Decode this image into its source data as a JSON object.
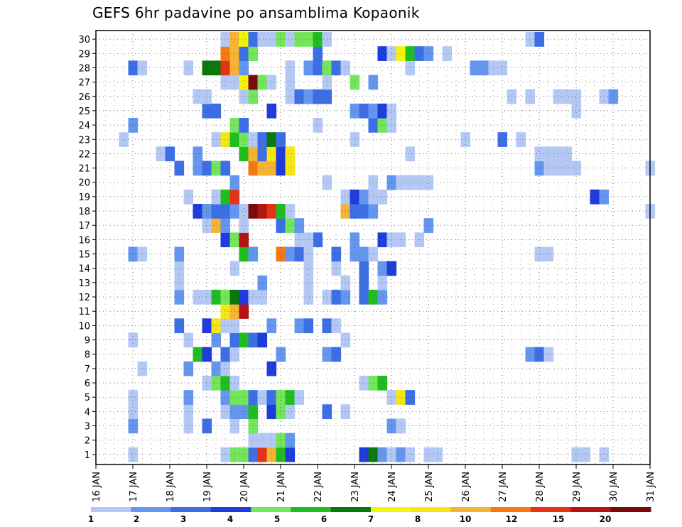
{
  "chart_data": {
    "type": "heatmap",
    "title": "GEFS 6hr padavine po ansamblima Kopaonik",
    "x_tick_labels": [
      "16 JAN",
      "17 JAN",
      "18 JAN",
      "19 JAN",
      "20 JAN",
      "21 JAN",
      "22 JAN",
      "23 JAN",
      "24 JAN",
      "25 JAN",
      "26 JAN",
      "27 JAN",
      "28 JAN",
      "29 JAN",
      "30 JAN",
      "31 JAN"
    ],
    "x_range_days": [
      16,
      31
    ],
    "y_tick_labels": [
      "1",
      "2",
      "3",
      "4",
      "5",
      "6",
      "7",
      "8",
      "9",
      "10",
      "11",
      "12",
      "13",
      "14",
      "15",
      "16",
      "17",
      "18",
      "19",
      "20",
      "21",
      "22",
      "23",
      "24",
      "25",
      "26",
      "27",
      "28",
      "29",
      "30"
    ],
    "y_range_members": [
      1,
      30
    ],
    "grid": true,
    "colorbar": {
      "placement": "bottom",
      "labels": [
        "1",
        "2",
        "3",
        "4",
        "5",
        "6",
        "7",
        "8",
        "10",
        "12",
        "15",
        "20"
      ],
      "colors": [
        "#b4c8f5",
        "#6496f0",
        "#3c6ee6",
        "#1e3cdc",
        "#73e65a",
        "#1ebe1e",
        "#0a780a",
        "#f5f50a",
        "#f5e614",
        "#f5b432",
        "#f57814",
        "#e63214",
        "#b41414",
        "#780a0a"
      ]
    },
    "cells": [
      [
        1,
        "19.75",
        5
      ],
      [
        1,
        "20.00",
        5
      ],
      [
        1,
        "20.25",
        3
      ],
      [
        1,
        "20.50",
        12
      ],
      [
        1,
        "20.75",
        10
      ],
      [
        1,
        "21.00",
        6
      ],
      [
        1,
        "21.25",
        4
      ],
      [
        1,
        "17.00",
        1
      ],
      [
        1,
        "19.50",
        1
      ],
      [
        1,
        "23.25",
        4
      ],
      [
        1,
        "23.50",
        7
      ],
      [
        1,
        "23.75",
        2
      ],
      [
        1,
        "24.00",
        1
      ],
      [
        1,
        "24.25",
        2
      ],
      [
        1,
        "24.50",
        1
      ],
      [
        1,
        "25.00",
        1
      ],
      [
        1,
        "25.25",
        1
      ],
      [
        1,
        "29.00",
        1
      ],
      [
        1,
        "29.25",
        1
      ],
      [
        1,
        "29.75",
        1
      ],
      [
        2,
        "20.25",
        1
      ],
      [
        2,
        "20.50",
        1
      ],
      [
        2,
        "20.75",
        1
      ],
      [
        2,
        "21.00",
        5
      ],
      [
        2,
        "21.25",
        2
      ],
      [
        3,
        "17.00",
        2
      ],
      [
        3,
        "18.50",
        1
      ],
      [
        3,
        "19.00",
        3
      ],
      [
        3,
        "19.75",
        1
      ],
      [
        3,
        "20.25",
        5
      ],
      [
        3,
        "24.00",
        2
      ],
      [
        3,
        "24.25",
        1
      ],
      [
        4,
        "19.50",
        1
      ],
      [
        4,
        "19.75",
        2
      ],
      [
        4,
        "20.00",
        2
      ],
      [
        4,
        "20.25",
        6
      ],
      [
        4,
        "20.75",
        4
      ],
      [
        4,
        "21.00",
        5
      ],
      [
        4,
        "21.25",
        1
      ],
      [
        4,
        "22.25",
        3
      ],
      [
        4,
        "22.75",
        1
      ],
      [
        4,
        "17.00",
        1
      ],
      [
        4,
        "18.50",
        1
      ],
      [
        5,
        "17.00",
        1
      ],
      [
        5,
        "18.50",
        2
      ],
      [
        5,
        "19.50",
        2
      ],
      [
        5,
        "19.75",
        5
      ],
      [
        5,
        "20.00",
        5
      ],
      [
        5,
        "20.25",
        3
      ],
      [
        5,
        "20.50",
        1
      ],
      [
        5,
        "20.75",
        3
      ],
      [
        5,
        "21.00",
        5
      ],
      [
        5,
        "21.25",
        6
      ],
      [
        5,
        "21.50",
        1
      ],
      [
        5,
        "24.00",
        1
      ],
      [
        5,
        "24.25",
        9
      ],
      [
        5,
        "24.50",
        3
      ],
      [
        6,
        "19.00",
        1
      ],
      [
        6,
        "19.25",
        5
      ],
      [
        6,
        "19.50",
        6
      ],
      [
        6,
        "19.75",
        1
      ],
      [
        6,
        "23.25",
        1
      ],
      [
        6,
        "23.50",
        5
      ],
      [
        6,
        "23.75",
        6
      ],
      [
        7,
        "17.25",
        1
      ],
      [
        7,
        "18.50",
        2
      ],
      [
        7,
        "19.25",
        2
      ],
      [
        7,
        "19.50",
        1
      ],
      [
        7,
        "20.75",
        4
      ],
      [
        8,
        "18.75",
        6
      ],
      [
        8,
        "19.00",
        4
      ],
      [
        8,
        "19.50",
        3
      ],
      [
        8,
        "19.75",
        1
      ],
      [
        8,
        "21.00",
        2
      ],
      [
        8,
        "22.25",
        2
      ],
      [
        8,
        "22.50",
        3
      ],
      [
        8,
        "27.75",
        2
      ],
      [
        8,
        "28.00",
        3
      ],
      [
        8,
        "28.25",
        1
      ],
      [
        9,
        "17.00",
        1
      ],
      [
        9,
        "18.50",
        1
      ],
      [
        9,
        "19.25",
        2
      ],
      [
        9,
        "19.75",
        3
      ],
      [
        9,
        "20.00",
        6
      ],
      [
        9,
        "20.25",
        3
      ],
      [
        9,
        "20.50",
        4
      ],
      [
        9,
        "22.75",
        1
      ],
      [
        10,
        "18.25",
        3
      ],
      [
        10,
        "19.00",
        4
      ],
      [
        10,
        "19.25",
        9
      ],
      [
        10,
        "19.50",
        1
      ],
      [
        10,
        "19.75",
        1
      ],
      [
        10,
        "20.75",
        2
      ],
      [
        10,
        "21.50",
        2
      ],
      [
        10,
        "21.75",
        3
      ],
      [
        10,
        "22.25",
        3
      ],
      [
        10,
        "22.50",
        1
      ],
      [
        11,
        "19.50",
        9
      ],
      [
        11,
        "19.75",
        10
      ],
      [
        11,
        "20.00",
        13
      ],
      [
        12,
        "18.25",
        2
      ],
      [
        12,
        "18.75",
        1
      ],
      [
        12,
        "19.00",
        1
      ],
      [
        12,
        "19.25",
        6
      ],
      [
        12,
        "19.50",
        5
      ],
      [
        12,
        "19.75",
        7
      ],
      [
        12,
        "20.00",
        4
      ],
      [
        12,
        "20.25",
        1
      ],
      [
        12,
        "20.50",
        1
      ],
      [
        12,
        "21.75",
        1
      ],
      [
        12,
        "22.25",
        1
      ],
      [
        12,
        "22.50",
        3
      ],
      [
        12,
        "22.75",
        2
      ],
      [
        12,
        "23.25",
        3
      ],
      [
        12,
        "23.50",
        6
      ],
      [
        12,
        "23.75",
        2
      ],
      [
        13,
        "18.25",
        1
      ],
      [
        13,
        "20.50",
        2
      ],
      [
        13,
        "22.75",
        1
      ],
      [
        13,
        "23.25",
        3
      ],
      [
        13,
        "23.75",
        1
      ],
      [
        13,
        "21.75",
        1
      ],
      [
        14,
        "18.25",
        1
      ],
      [
        14,
        "19.75",
        1
      ],
      [
        14,
        "22.50",
        1
      ],
      [
        14,
        "23.25",
        3
      ],
      [
        14,
        "23.75",
        2
      ],
      [
        14,
        "24.00",
        4
      ],
      [
        14,
        "21.75",
        1
      ],
      [
        15,
        "17.00",
        2
      ],
      [
        15,
        "17.25",
        1
      ],
      [
        15,
        "18.25",
        2
      ],
      [
        15,
        "20.00",
        6
      ],
      [
        15,
        "20.25",
        2
      ],
      [
        15,
        "21.00",
        11
      ],
      [
        15,
        "21.25",
        2
      ],
      [
        15,
        "21.50",
        3
      ],
      [
        15,
        "21.75",
        1
      ],
      [
        15,
        "22.50",
        3
      ],
      [
        15,
        "23.00",
        2
      ],
      [
        15,
        "23.25",
        2
      ],
      [
        15,
        "23.50",
        1
      ],
      [
        15,
        "28.00",
        1
      ],
      [
        15,
        "28.25",
        1
      ],
      [
        16,
        "19.50",
        4
      ],
      [
        16,
        "19.75",
        5
      ],
      [
        16,
        "20.00",
        13
      ],
      [
        16,
        "22.00",
        3
      ],
      [
        16,
        "23.00",
        2
      ],
      [
        16,
        "23.75",
        4
      ],
      [
        16,
        "24.00",
        1
      ],
      [
        16,
        "24.25",
        1
      ],
      [
        16,
        "24.75",
        1
      ],
      [
        16,
        "21.75",
        1
      ],
      [
        16,
        "21.50",
        1
      ],
      [
        17,
        "19.00",
        1
      ],
      [
        17,
        "19.25",
        10
      ],
      [
        17,
        "19.50",
        2
      ],
      [
        17,
        "20.00",
        1
      ],
      [
        17,
        "21.00",
        3
      ],
      [
        17,
        "21.25",
        5
      ],
      [
        17,
        "21.50",
        2
      ],
      [
        17,
        "25.00",
        2
      ],
      [
        18,
        "18.75",
        4
      ],
      [
        18,
        "19.00",
        2
      ],
      [
        18,
        "19.25",
        3
      ],
      [
        18,
        "19.50",
        3
      ],
      [
        18,
        "19.75",
        2
      ],
      [
        18,
        "20.00",
        1
      ],
      [
        18,
        "20.25",
        14
      ],
      [
        18,
        "20.50",
        13
      ],
      [
        18,
        "20.75",
        12
      ],
      [
        18,
        "21.00",
        6
      ],
      [
        18,
        "21.25",
        1
      ],
      [
        18,
        "22.75",
        10
      ],
      [
        18,
        "23.00",
        3
      ],
      [
        18,
        "23.25",
        3
      ],
      [
        18,
        "23.50",
        2
      ],
      [
        18,
        "31.00",
        1
      ],
      [
        19,
        "18.50",
        1
      ],
      [
        19,
        "19.25",
        1
      ],
      [
        19,
        "19.50",
        6
      ],
      [
        19,
        "19.75",
        12
      ],
      [
        19,
        "22.75",
        1
      ],
      [
        19,
        "23.00",
        4
      ],
      [
        19,
        "23.25",
        2
      ],
      [
        19,
        "23.50",
        1
      ],
      [
        19,
        "23.75",
        1
      ],
      [
        19,
        "29.50",
        4
      ],
      [
        19,
        "29.75",
        2
      ],
      [
        20,
        "19.75",
        2
      ],
      [
        20,
        "22.25",
        1
      ],
      [
        20,
        "23.50",
        1
      ],
      [
        20,
        "24.00",
        2
      ],
      [
        20,
        "24.25",
        1
      ],
      [
        20,
        "24.50",
        1
      ],
      [
        20,
        "24.75",
        1
      ],
      [
        20,
        "25.00",
        1
      ],
      [
        21,
        "18.25",
        3
      ],
      [
        21,
        "18.75",
        2
      ],
      [
        21,
        "19.00",
        3
      ],
      [
        21,
        "19.25",
        5
      ],
      [
        21,
        "19.50",
        3
      ],
      [
        21,
        "20.25",
        11
      ],
      [
        21,
        "20.50",
        10
      ],
      [
        21,
        "20.75",
        10
      ],
      [
        21,
        "21.00",
        4
      ],
      [
        21,
        "21.25",
        9
      ],
      [
        21,
        "28.00",
        2
      ],
      [
        21,
        "28.25",
        1
      ],
      [
        21,
        "28.50",
        1
      ],
      [
        21,
        "28.75",
        1
      ],
      [
        21,
        "29.00",
        1
      ],
      [
        21,
        "31.00",
        1
      ],
      [
        22,
        "17.75",
        1
      ],
      [
        22,
        "18.00",
        3
      ],
      [
        22,
        "18.75",
        2
      ],
      [
        22,
        "20.00",
        6
      ],
      [
        22,
        "20.25",
        10
      ],
      [
        22,
        "20.50",
        3
      ],
      [
        22,
        "20.75",
        9
      ],
      [
        22,
        "21.00",
        4
      ],
      [
        22,
        "21.25",
        9
      ],
      [
        22,
        "24.50",
        1
      ],
      [
        22,
        "28.00",
        1
      ],
      [
        22,
        "28.25",
        1
      ],
      [
        22,
        "28.50",
        1
      ],
      [
        22,
        "28.75",
        1
      ],
      [
        23,
        "16.75",
        1
      ],
      [
        23,
        "19.25",
        1
      ],
      [
        23,
        "19.50",
        9
      ],
      [
        23,
        "19.75",
        6
      ],
      [
        23,
        "20.00",
        5
      ],
      [
        23,
        "20.25",
        1
      ],
      [
        23,
        "20.50",
        3
      ],
      [
        23,
        "20.75",
        7
      ],
      [
        23,
        "21.00",
        3
      ],
      [
        23,
        "23.00",
        1
      ],
      [
        23,
        "26.00",
        1
      ],
      [
        23,
        "27.00",
        3
      ],
      [
        23,
        "27.50",
        1
      ],
      [
        24,
        "17.00",
        2
      ],
      [
        24,
        "19.75",
        5
      ],
      [
        24,
        "20.00",
        3
      ],
      [
        24,
        "22.00",
        1
      ],
      [
        24,
        "23.50",
        3
      ],
      [
        24,
        "23.75",
        5
      ],
      [
        24,
        "24.00",
        1
      ],
      [
        25,
        "19.00",
        3
      ],
      [
        25,
        "19.25",
        3
      ],
      [
        25,
        "20.75",
        4
      ],
      [
        25,
        "23.00",
        2
      ],
      [
        25,
        "23.25",
        3
      ],
      [
        25,
        "23.50",
        2
      ],
      [
        25,
        "23.75",
        4
      ],
      [
        25,
        "24.00",
        1
      ],
      [
        25,
        "29.00",
        1
      ],
      [
        26,
        "18.75",
        1
      ],
      [
        26,
        "19.00",
        1
      ],
      [
        26,
        "20.00",
        1
      ],
      [
        26,
        "20.25",
        5
      ],
      [
        26,
        "21.25",
        1
      ],
      [
        26,
        "21.50",
        3
      ],
      [
        26,
        "21.75",
        2
      ],
      [
        26,
        "22.00",
        3
      ],
      [
        26,
        "22.25",
        3
      ],
      [
        26,
        "27.25",
        1
      ],
      [
        26,
        "27.75",
        1
      ],
      [
        26,
        "28.50",
        1
      ],
      [
        26,
        "28.75",
        1
      ],
      [
        26,
        "29.00",
        1
      ],
      [
        26,
        "29.75",
        1
      ],
      [
        26,
        "30.00",
        2
      ],
      [
        27,
        "19.50",
        1
      ],
      [
        27,
        "19.75",
        1
      ],
      [
        27,
        "20.00",
        8
      ],
      [
        27,
        "20.25",
        14
      ],
      [
        27,
        "20.50",
        5
      ],
      [
        27,
        "20.75",
        1
      ],
      [
        27,
        "21.25",
        1
      ],
      [
        27,
        "22.25",
        1
      ],
      [
        27,
        "23.00",
        5
      ],
      [
        27,
        "23.50",
        2
      ],
      [
        28,
        "17.00",
        3
      ],
      [
        28,
        "17.25",
        1
      ],
      [
        28,
        "18.50",
        1
      ],
      [
        28,
        "19.00",
        7
      ],
      [
        28,
        "19.25",
        7
      ],
      [
        28,
        "19.50",
        12
      ],
      [
        28,
        "19.75",
        10
      ],
      [
        28,
        "20.00",
        2
      ],
      [
        28,
        "21.25",
        1
      ],
      [
        28,
        "21.75",
        2
      ],
      [
        28,
        "22.00",
        3
      ],
      [
        28,
        "22.25",
        5
      ],
      [
        28,
        "22.50",
        3
      ],
      [
        28,
        "22.75",
        1
      ],
      [
        28,
        "24.50",
        1
      ],
      [
        28,
        "26.25",
        2
      ],
      [
        28,
        "26.50",
        2
      ],
      [
        28,
        "26.75",
        1
      ],
      [
        28,
        "27.00",
        1
      ],
      [
        29,
        "19.50",
        11
      ],
      [
        29,
        "19.75",
        10
      ],
      [
        29,
        "20.00",
        3
      ],
      [
        29,
        "20.25",
        5
      ],
      [
        29,
        "22.00",
        3
      ],
      [
        29,
        "23.75",
        4
      ],
      [
        29,
        "24.00",
        1
      ],
      [
        29,
        "24.25",
        8
      ],
      [
        29,
        "24.50",
        6
      ],
      [
        29,
        "24.75",
        3
      ],
      [
        29,
        "25.00",
        2
      ],
      [
        29,
        "25.50",
        1
      ],
      [
        30,
        "19.50",
        1
      ],
      [
        30,
        "19.75",
        10
      ],
      [
        30,
        "20.00",
        8
      ],
      [
        30,
        "20.25",
        3
      ],
      [
        30,
        "20.50",
        1
      ],
      [
        30,
        "20.75",
        1
      ],
      [
        30,
        "21.00",
        5
      ],
      [
        30,
        "21.25",
        1
      ],
      [
        30,
        "21.50",
        5
      ],
      [
        30,
        "21.75",
        5
      ],
      [
        30,
        "22.00",
        6
      ],
      [
        30,
        "22.25",
        1
      ],
      [
        30,
        "27.75",
        1
      ],
      [
        30,
        "28.00",
        3
      ]
    ]
  }
}
